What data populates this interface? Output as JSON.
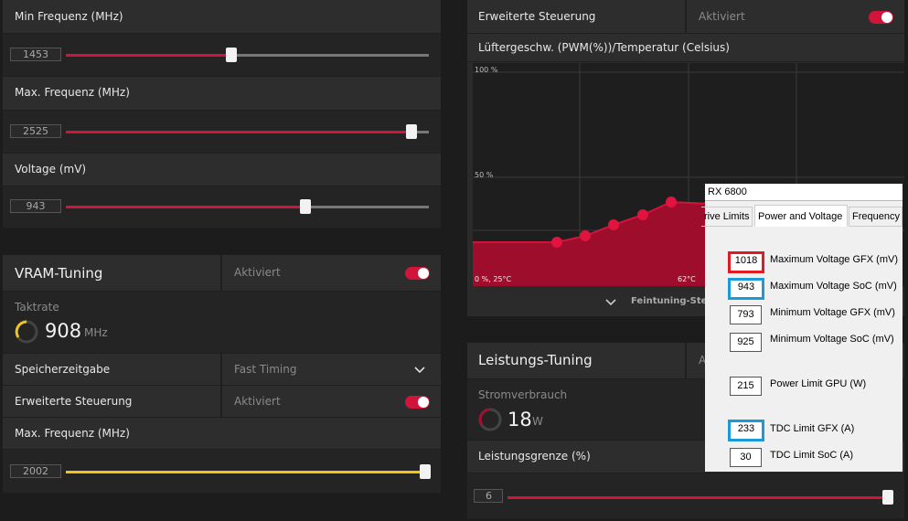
{
  "gpu_tuning": {
    "min_freq_label": "Min Frequenz (MHz)",
    "min_freq_value": "1453",
    "min_freq_fraction": 0.45,
    "max_freq_label": "Max. Frequenz (MHz)",
    "max_freq_value": "2525",
    "max_freq_fraction": 0.95,
    "voltage_label": "Voltage (mV)",
    "voltage_value": "943",
    "voltage_fraction": 0.66
  },
  "vram": {
    "title": "VRAM-Tuning",
    "status": "Aktiviert",
    "clock_label": "Taktrate",
    "clock_value": "908",
    "clock_unit": "MHz",
    "timing_label": "Speicherzeitgabe",
    "timing_value": "Fast Timing",
    "advanced_label": "Erweiterte Steuerung",
    "advanced_status": "Aktiviert",
    "max_freq_label": "Max. Frequenz (MHz)",
    "max_freq_value": "2002",
    "max_freq_fraction": 1.0
  },
  "fan": {
    "advanced_label": "Erweiterte Steuerung",
    "advanced_status": "Aktiviert",
    "chart_title": "Lüftergeschw. (PWM(%))/Temperatur (Celsius)",
    "y_top": "100 %",
    "y_mid": "50 %",
    "x_start": "0 %, 25°C",
    "x_mid": "62°C",
    "fine_tuning": "Feintuning-Steu"
  },
  "power": {
    "title": "Leistungs-Tuning",
    "title_right": "A",
    "consumption_label": "Stromverbrauch",
    "consumption_value": "18",
    "consumption_unit": "W",
    "limit_label": "Leistungsgrenze (%)",
    "limit_value": "6",
    "limit_fraction": 1.0
  },
  "popup": {
    "title": "RX 6800",
    "tabs": [
      "rive Limits",
      "Power and Voltage",
      "Frequency"
    ],
    "fields": [
      {
        "value": "1018",
        "label": "Maximum Voltage GFX (mV)",
        "highlight": "red"
      },
      {
        "value": "943",
        "label": "Maximum Voltage SoC (mV)",
        "highlight": "blue"
      },
      {
        "value": "793",
        "label": "Minimum Voltage GFX (mV)",
        "highlight": ""
      },
      {
        "value": "925",
        "label": "Minimum Voltage SoC (mV)",
        "highlight": ""
      },
      {
        "value": "215",
        "label": "Power Limit GPU (W)",
        "highlight": ""
      },
      {
        "value": "233",
        "label": "TDC Limit GFX (A)",
        "highlight": "blue"
      },
      {
        "value": "30",
        "label": "TDC Limit SoC (A)",
        "highlight": ""
      }
    ]
  },
  "colors": {
    "accent": "#d0143a",
    "vram_accent": "#f0c419",
    "popup_red": "#e01b22",
    "popup_blue": "#1a9ad6"
  }
}
